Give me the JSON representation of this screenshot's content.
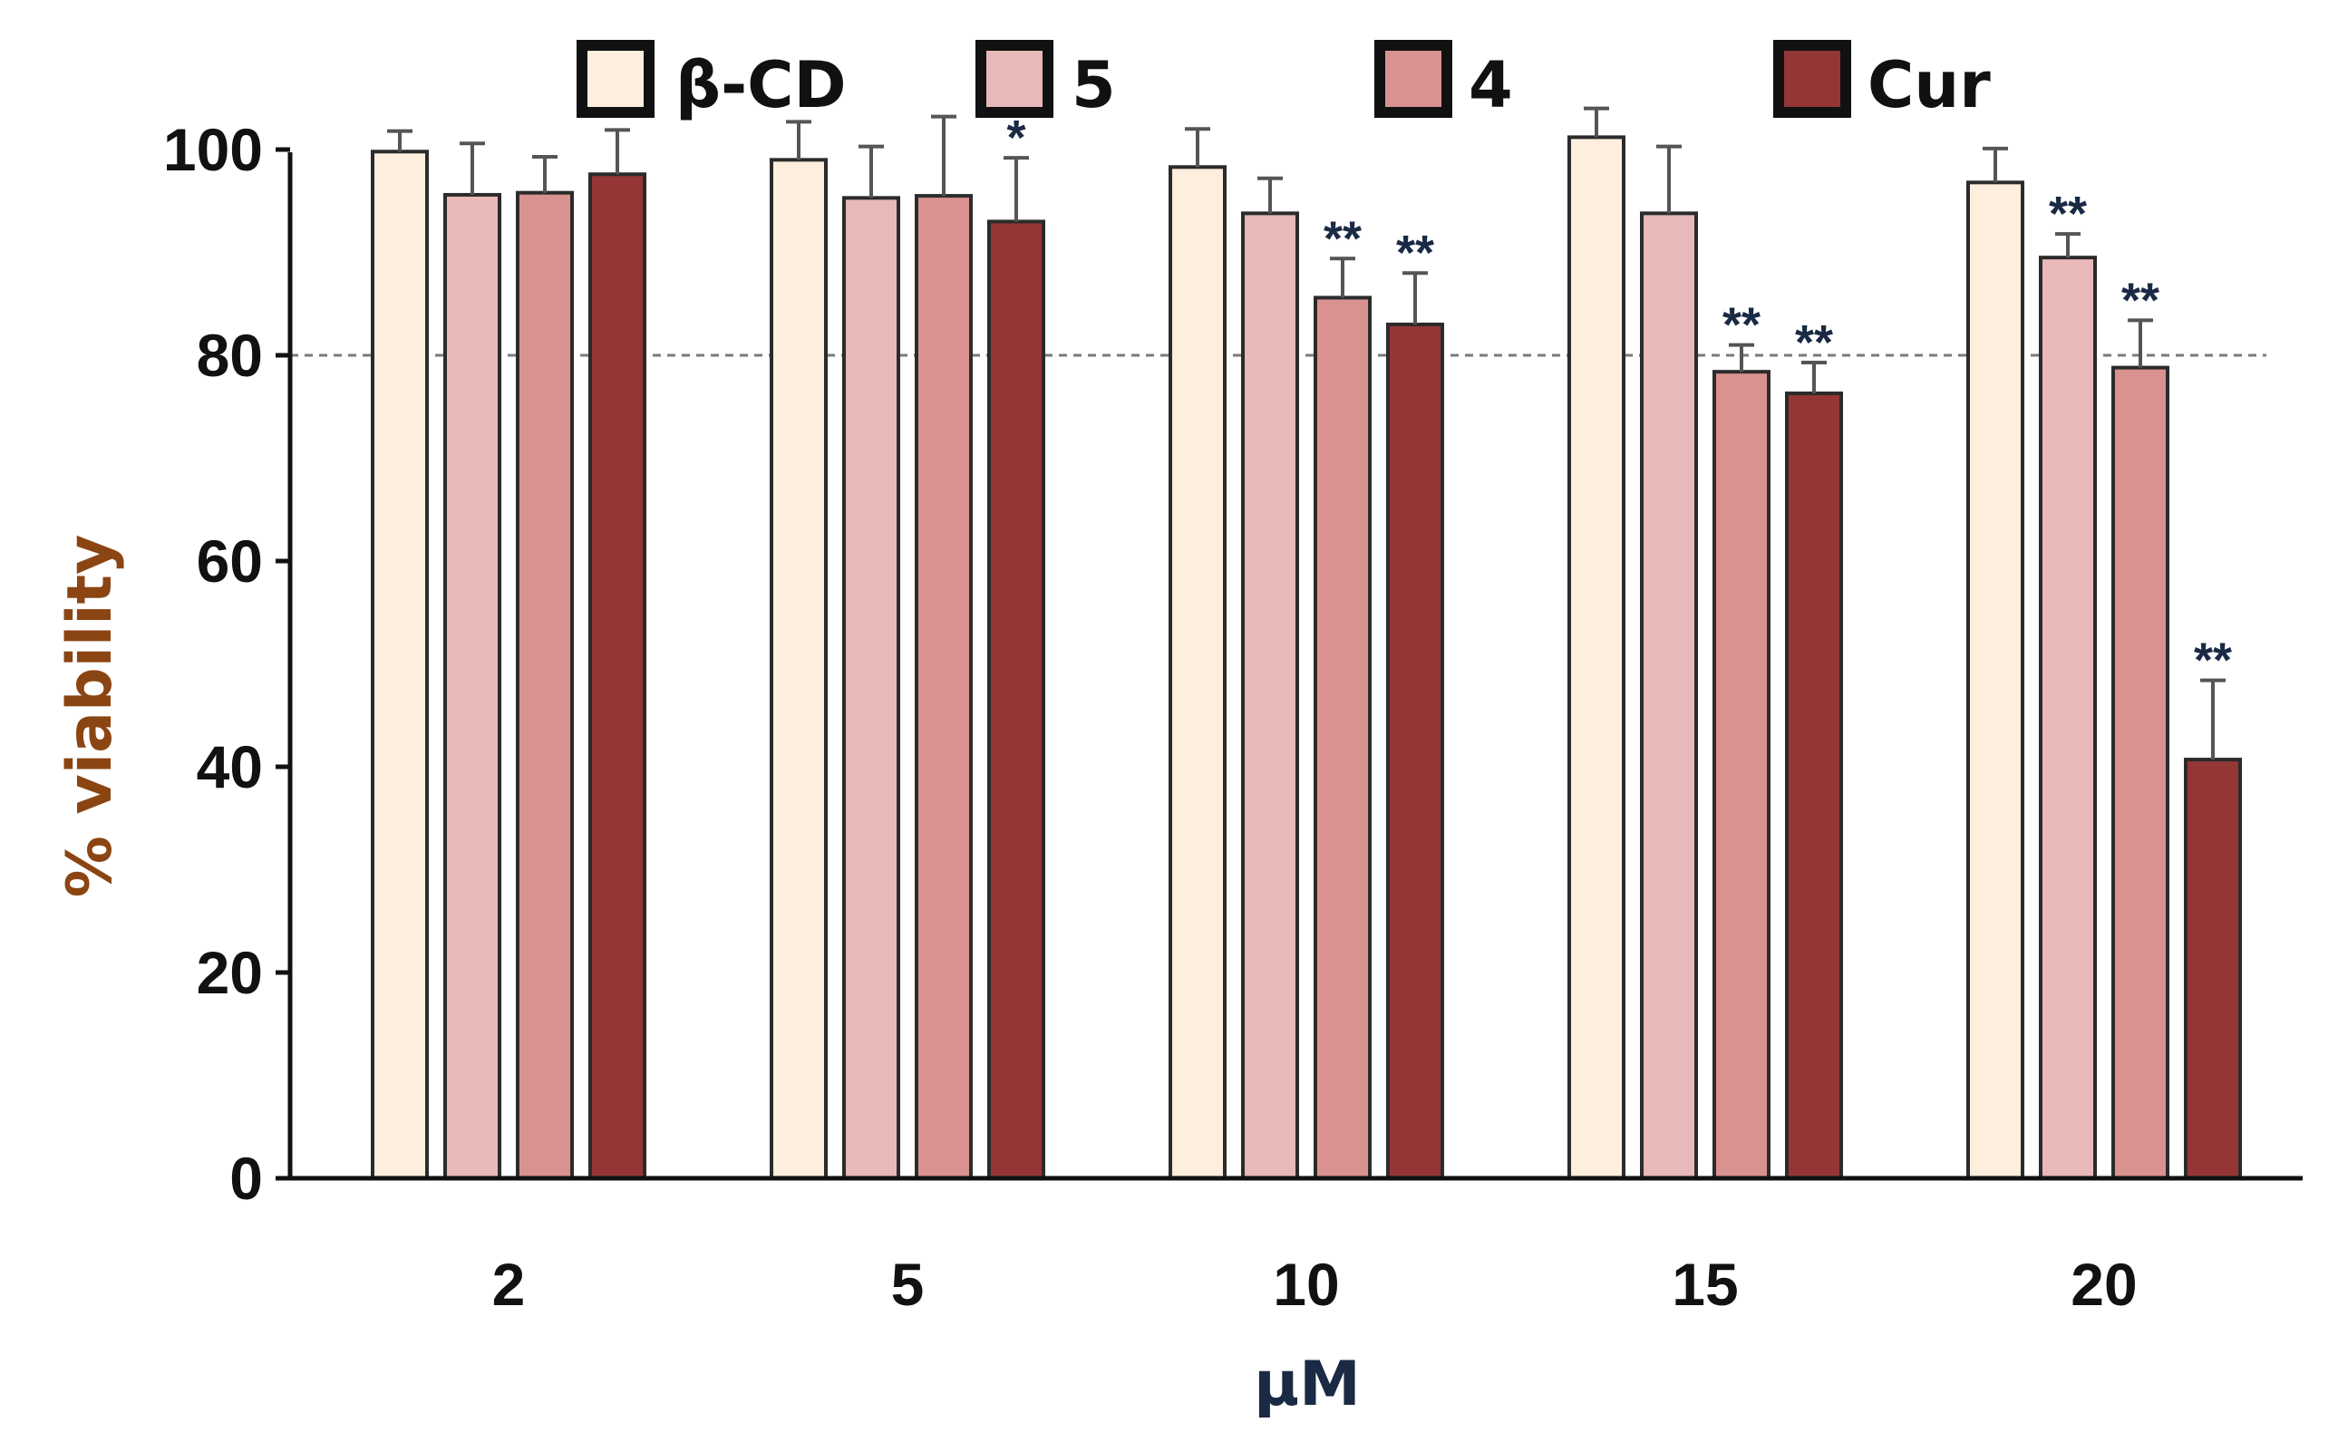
{
  "chart_data": {
    "type": "bar",
    "title": "",
    "xlabel": "μM",
    "ylabel": "% viability",
    "categories": [
      "2",
      "5",
      "10",
      "15",
      "20"
    ],
    "ylim": [
      0,
      110
    ],
    "yticks": [
      "0",
      "20",
      "40",
      "60",
      "80",
      "100"
    ],
    "yticks_values": [
      0,
      20,
      40,
      60,
      80,
      100
    ],
    "reference_line": 80,
    "legend_position": "top",
    "series": [
      {
        "name": "β-CD",
        "color": "#fdeedd",
        "values": [
          99.8,
          99.0,
          98.3,
          101.2,
          96.8
        ],
        "errors": [
          2.0,
          3.7,
          3.7,
          2.8,
          3.3
        ],
        "significance": [
          "",
          "",
          "",
          "",
          ""
        ]
      },
      {
        "name": "5",
        "color": "#e9b8b8",
        "values": [
          95.6,
          95.3,
          93.8,
          93.8,
          89.5
        ],
        "errors": [
          5.0,
          5.0,
          3.4,
          6.5,
          2.3
        ],
        "significance": [
          "",
          "",
          "",
          "",
          "**"
        ]
      },
      {
        "name": "4",
        "color": "#d99290",
        "values": [
          95.8,
          95.5,
          85.6,
          78.4,
          78.8
        ],
        "errors": [
          3.5,
          7.7,
          3.8,
          2.6,
          4.6
        ],
        "significance": [
          "",
          "",
          "**",
          "**",
          "**"
        ]
      },
      {
        "name": "Cur",
        "color": "#943636",
        "values": [
          97.6,
          93.0,
          83.0,
          76.3,
          40.7
        ],
        "errors": [
          4.3,
          6.2,
          5.0,
          3.0,
          7.7
        ],
        "significance": [
          "",
          "*",
          "**",
          "**",
          "**"
        ]
      }
    ]
  },
  "colors": {
    "ylabel": "#8B4513",
    "xlabel": "#1a2a44",
    "sig": "#1a2a44",
    "outline": "#2b2b2b"
  }
}
